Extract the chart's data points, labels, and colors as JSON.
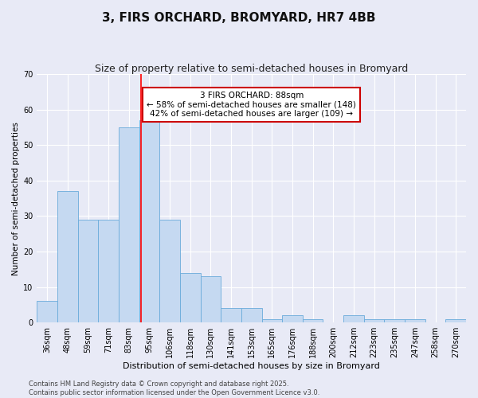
{
  "title": "3, FIRS ORCHARD, BROMYARD, HR7 4BB",
  "subtitle": "Size of property relative to semi-detached houses in Bromyard",
  "xlabel": "Distribution of semi-detached houses by size in Bromyard",
  "ylabel": "Number of semi-detached properties",
  "categories": [
    "36sqm",
    "48sqm",
    "59sqm",
    "71sqm",
    "83sqm",
    "95sqm",
    "106sqm",
    "118sqm",
    "130sqm",
    "141sqm",
    "153sqm",
    "165sqm",
    "176sqm",
    "188sqm",
    "200sqm",
    "212sqm",
    "223sqm",
    "235sqm",
    "247sqm",
    "258sqm",
    "270sqm"
  ],
  "values": [
    6,
    37,
    29,
    29,
    55,
    57,
    29,
    14,
    13,
    4,
    4,
    1,
    2,
    1,
    0,
    2,
    1,
    1,
    1,
    0,
    1
  ],
  "bar_color": "#c5d9f1",
  "bar_edge_color": "#6aabdb",
  "red_line_x": 4.6,
  "annotation_text": "3 FIRS ORCHARD: 88sqm\n← 58% of semi-detached houses are smaller (148)\n42% of semi-detached houses are larger (109) →",
  "annotation_box_facecolor": "#ffffff",
  "annotation_box_edgecolor": "#cc0000",
  "ylim": [
    0,
    70
  ],
  "yticks": [
    0,
    10,
    20,
    30,
    40,
    50,
    60,
    70
  ],
  "background_color": "#e8eaf6",
  "plot_bg_color": "#e8eaf6",
  "grid_color": "#ffffff",
  "footer_line1": "Contains HM Land Registry data © Crown copyright and database right 2025.",
  "footer_line2": "Contains public sector information licensed under the Open Government Licence v3.0.",
  "title_fontsize": 11,
  "subtitle_fontsize": 9,
  "axis_label_fontsize": 8,
  "tick_fontsize": 7,
  "annotation_fontsize": 7.5,
  "footer_fontsize": 6,
  "ylabel_fontsize": 7.5
}
